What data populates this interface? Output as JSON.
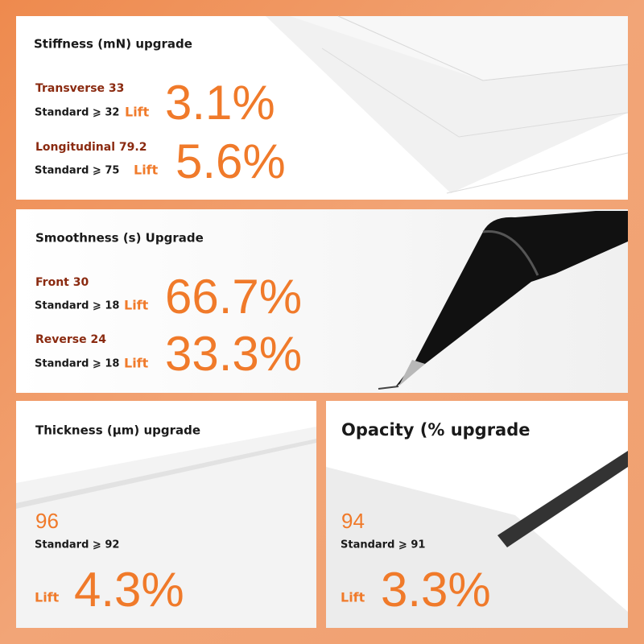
{
  "panels": [
    {
      "title": "Stiffness (mN) upgrade",
      "rows": [
        {
          "label": "Transverse 33",
          "standard": "Standard ⩾ 32",
          "lift": "Lift",
          "percent": "3.1%"
        },
        {
          "label": "Longitudinal 79.2",
          "standard": "Standard ⩾ 75",
          "lift": "Lift",
          "percent": "5.6%"
        }
      ]
    },
    {
      "title": "Smoothness (s) Upgrade",
      "rows": [
        {
          "label": "Front 30",
          "standard": "Standard ⩾ 18",
          "lift": "Lift",
          "percent": "66.7%"
        },
        {
          "label": "Reverse 24",
          "standard": "Standard ⩾ 18",
          "lift": "Lift",
          "percent": "33.3%"
        }
      ]
    },
    {
      "title": "Thickness (μm) upgrade",
      "rows": [
        {
          "label": "96",
          "standard": "Standard ⩾ 92",
          "lift": "Lift",
          "percent": "4.3%"
        }
      ]
    },
    {
      "title": "Opacity (% upgrade",
      "rows": [
        {
          "label": "94",
          "standard": "Standard ⩾ 91",
          "lift": "Lift",
          "percent": "3.3%"
        }
      ]
    }
  ]
}
